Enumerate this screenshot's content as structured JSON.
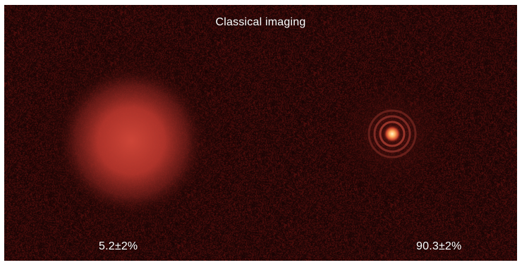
{
  "figure": {
    "title": "Classical imaging",
    "left_spot": {
      "value_label": "5.2±2%",
      "appearance": "large diffuse red blur"
    },
    "right_spot": {
      "value_label": "90.3±2%",
      "appearance": "small bright focused spot with Airy rings"
    }
  },
  "colors": {
    "background": "#160404",
    "glow": "#c23a30",
    "core": "#ffd38a",
    "text": "#ffffff"
  }
}
